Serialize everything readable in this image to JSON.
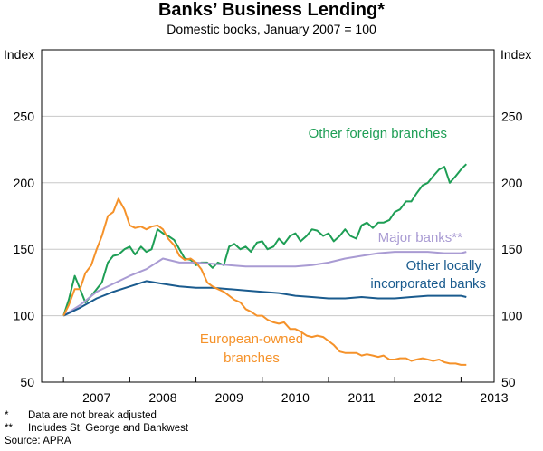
{
  "title": "Banks’ Business Lending*",
  "subtitle": "Domestic books, January 2007 = 100",
  "axis_unit_left": "Index",
  "axis_unit_right": "Index",
  "notes": [
    {
      "mark": "*",
      "text": "Data are not break adjusted"
    },
    {
      "mark": "**",
      "text": "Includes St. George and Bankwest"
    }
  ],
  "source": "Source: APRA",
  "chart_data": {
    "type": "line",
    "title": "Banks’ Business Lending*",
    "subtitle": "Domestic books, January 2007 = 100",
    "ylabel_left": "Index",
    "ylabel_right": "Index",
    "ylim": [
      50,
      300
    ],
    "yticks": [
      50,
      100,
      150,
      200,
      250
    ],
    "xlim": [
      2006.67,
      2013.5
    ],
    "xticks": [
      "2007",
      "2008",
      "2009",
      "2010",
      "2011",
      "2012",
      "2013"
    ],
    "grid": true,
    "series": [
      {
        "name": "Other foreign branches",
        "color": "#1e9e55",
        "x": [
          2007.0,
          2007.08,
          2007.17,
          2007.25,
          2007.33,
          2007.42,
          2007.5,
          2007.58,
          2007.67,
          2007.75,
          2007.83,
          2007.92,
          2008.0,
          2008.08,
          2008.17,
          2008.25,
          2008.33,
          2008.42,
          2008.5,
          2008.58,
          2008.67,
          2008.75,
          2008.83,
          2008.92,
          2009.0,
          2009.08,
          2009.17,
          2009.25,
          2009.33,
          2009.42,
          2009.5,
          2009.58,
          2009.67,
          2009.75,
          2009.83,
          2009.92,
          2010.0,
          2010.08,
          2010.17,
          2010.25,
          2010.33,
          2010.42,
          2010.5,
          2010.58,
          2010.67,
          2010.75,
          2010.83,
          2010.92,
          2011.0,
          2011.08,
          2011.17,
          2011.25,
          2011.33,
          2011.42,
          2011.5,
          2011.58,
          2011.67,
          2011.75,
          2011.83,
          2011.92,
          2012.0,
          2012.08,
          2012.17,
          2012.25,
          2012.33,
          2012.42,
          2012.5,
          2012.58,
          2012.67,
          2012.75,
          2012.83,
          2012.92,
          2013.0,
          2013.08
        ],
        "values": [
          100,
          112,
          130,
          120,
          110,
          115,
          120,
          125,
          140,
          145,
          146,
          150,
          152,
          146,
          152,
          148,
          150,
          165,
          162,
          160,
          157,
          150,
          143,
          142,
          138,
          140,
          140,
          136,
          140,
          138,
          152,
          154,
          150,
          152,
          148,
          155,
          156,
          150,
          152,
          158,
          154,
          160,
          162,
          156,
          160,
          165,
          164,
          160,
          162,
          156,
          160,
          165,
          160,
          158,
          168,
          170,
          166,
          170,
          170,
          172,
          178,
          180,
          186,
          186,
          192,
          198,
          200,
          205,
          210,
          212,
          200,
          205,
          210,
          214
        ]
      },
      {
        "name": "Major banks**",
        "color": "#a99bd3",
        "x": [
          2007.0,
          2007.25,
          2007.5,
          2007.75,
          2008.0,
          2008.25,
          2008.5,
          2008.75,
          2009.0,
          2009.25,
          2009.5,
          2009.75,
          2010.0,
          2010.25,
          2010.5,
          2010.75,
          2011.0,
          2011.25,
          2011.5,
          2011.75,
          2012.0,
          2012.25,
          2012.5,
          2012.75,
          2013.0,
          2013.08
        ],
        "values": [
          100,
          108,
          118,
          124,
          130,
          135,
          143,
          140,
          140,
          139,
          138,
          137,
          137,
          137,
          137,
          138,
          140,
          143,
          145,
          147,
          148,
          148,
          148,
          147,
          147,
          148
        ]
      },
      {
        "name": "Other locally incorporated banks",
        "color": "#1a5b8e",
        "x": [
          2007.0,
          2007.25,
          2007.5,
          2007.75,
          2008.0,
          2008.25,
          2008.5,
          2008.75,
          2009.0,
          2009.25,
          2009.5,
          2009.75,
          2010.0,
          2010.25,
          2010.5,
          2010.75,
          2011.0,
          2011.25,
          2011.5,
          2011.75,
          2012.0,
          2012.25,
          2012.5,
          2012.75,
          2013.0,
          2013.08
        ],
        "values": [
          100,
          106,
          113,
          118,
          122,
          126,
          124,
          122,
          121,
          121,
          120,
          119,
          118,
          117,
          115,
          114,
          113,
          113,
          114,
          113,
          113,
          114,
          115,
          115,
          115,
          114
        ]
      },
      {
        "name": "European-owned branches",
        "color": "#f5922a",
        "x": [
          2007.0,
          2007.08,
          2007.17,
          2007.25,
          2007.33,
          2007.42,
          2007.5,
          2007.58,
          2007.67,
          2007.75,
          2007.83,
          2007.92,
          2008.0,
          2008.08,
          2008.17,
          2008.25,
          2008.33,
          2008.42,
          2008.5,
          2008.58,
          2008.67,
          2008.75,
          2008.83,
          2008.92,
          2009.0,
          2009.08,
          2009.17,
          2009.25,
          2009.33,
          2009.42,
          2009.5,
          2009.58,
          2009.67,
          2009.75,
          2009.83,
          2009.92,
          2010.0,
          2010.08,
          2010.17,
          2010.25,
          2010.33,
          2010.42,
          2010.5,
          2010.58,
          2010.67,
          2010.75,
          2010.83,
          2010.92,
          2011.0,
          2011.08,
          2011.17,
          2011.25,
          2011.33,
          2011.42,
          2011.5,
          2011.58,
          2011.67,
          2011.75,
          2011.83,
          2011.92,
          2012.0,
          2012.08,
          2012.17,
          2012.25,
          2012.33,
          2012.42,
          2012.5,
          2012.58,
          2012.67,
          2012.75,
          2012.83,
          2012.92,
          2013.0,
          2013.08
        ],
        "values": [
          100,
          108,
          120,
          120,
          132,
          138,
          150,
          160,
          175,
          178,
          188,
          180,
          168,
          166,
          167,
          165,
          167,
          168,
          165,
          158,
          153,
          145,
          142,
          143,
          140,
          135,
          125,
          122,
          120,
          118,
          115,
          112,
          110,
          105,
          103,
          100,
          100,
          97,
          95,
          94,
          95,
          90,
          90,
          88,
          85,
          84,
          85,
          84,
          81,
          78,
          73,
          72,
          72,
          72,
          70,
          71,
          70,
          69,
          70,
          67,
          67,
          68,
          68,
          66,
          67,
          68,
          67,
          66,
          67,
          65,
          64,
          64,
          63,
          63
        ]
      }
    ],
    "annotations": [
      {
        "text": "Other foreign branches",
        "color": "#1e9e55"
      },
      {
        "text": "Major banks**",
        "color": "#a99bd3"
      },
      {
        "text": "Other locally",
        "color": "#1a5b8e"
      },
      {
        "text": "incorporated banks",
        "color": "#1a5b8e"
      },
      {
        "text": "European-owned",
        "color": "#f5922a"
      },
      {
        "text": "branches",
        "color": "#f5922a"
      }
    ]
  }
}
